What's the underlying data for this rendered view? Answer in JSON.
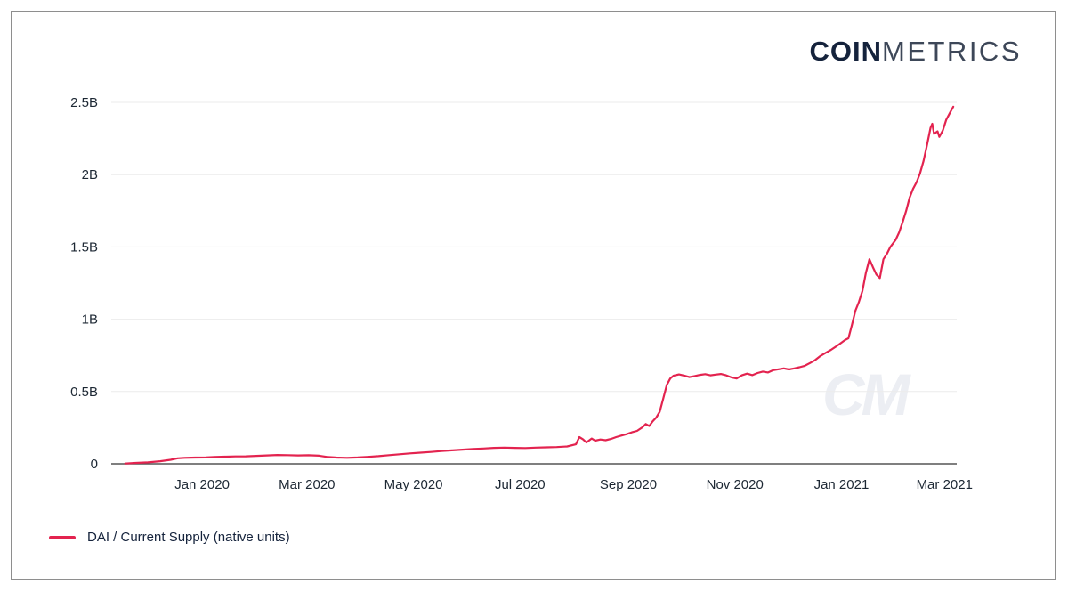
{
  "brand": {
    "logo_coin": "COIN",
    "logo_metrics": "METRICS",
    "watermark": "CM"
  },
  "legend": {
    "label": "DAI / Current Supply (native units)"
  },
  "colors": {
    "line": "#e3234f",
    "axis_text": "#1c2733",
    "gridline": "#ebebeb",
    "axis_line": "#555555",
    "watermark": "#eceef3",
    "frame_border": "#8e8e8e"
  },
  "chart_data": {
    "type": "line",
    "title": "",
    "xlabel": "",
    "ylabel": "",
    "grid": "horizontal",
    "legend_position": "bottom-left",
    "x_range": [
      "2019-11-10",
      "2021-03-08"
    ],
    "y_range": [
      0,
      2.5
    ],
    "y_ticks": [
      {
        "value": 0,
        "label": "0"
      },
      {
        "value": 0.5,
        "label": "0.5B"
      },
      {
        "value": 1,
        "label": "1B"
      },
      {
        "value": 1.5,
        "label": "1.5B"
      },
      {
        "value": 2,
        "label": "2B"
      },
      {
        "value": 2.5,
        "label": "2.5B"
      }
    ],
    "x_ticks": [
      {
        "date": "2020-01-01",
        "label": "Jan 2020"
      },
      {
        "date": "2020-03-01",
        "label": "Mar 2020"
      },
      {
        "date": "2020-05-01",
        "label": "May 2020"
      },
      {
        "date": "2020-07-01",
        "label": "Jul 2020"
      },
      {
        "date": "2020-09-01",
        "label": "Sep 2020"
      },
      {
        "date": "2020-11-01",
        "label": "Nov 2020"
      },
      {
        "date": "2021-01-01",
        "label": "Jan 2021"
      },
      {
        "date": "2021-03-01",
        "label": "Mar 2021"
      }
    ],
    "series": [
      {
        "name": "DAI / Current Supply (native units)",
        "color": "#e3234f",
        "units": "billions",
        "points": [
          [
            "2019-11-18",
            0.002
          ],
          [
            "2019-11-24",
            0.006
          ],
          [
            "2019-12-01",
            0.01
          ],
          [
            "2019-12-08",
            0.018
          ],
          [
            "2019-12-14",
            0.028
          ],
          [
            "2019-12-18",
            0.038
          ],
          [
            "2019-12-22",
            0.041
          ],
          [
            "2019-12-28",
            0.043
          ],
          [
            "2020-01-03",
            0.044
          ],
          [
            "2020-01-08",
            0.047
          ],
          [
            "2020-01-14",
            0.049
          ],
          [
            "2020-01-20",
            0.051
          ],
          [
            "2020-01-26",
            0.052
          ],
          [
            "2020-02-01",
            0.055
          ],
          [
            "2020-02-07",
            0.058
          ],
          [
            "2020-02-13",
            0.061
          ],
          [
            "2020-02-19",
            0.06
          ],
          [
            "2020-02-25",
            0.058
          ],
          [
            "2020-03-02",
            0.059
          ],
          [
            "2020-03-08",
            0.056
          ],
          [
            "2020-03-13",
            0.047
          ],
          [
            "2020-03-18",
            0.043
          ],
          [
            "2020-03-24",
            0.041
          ],
          [
            "2020-03-30",
            0.044
          ],
          [
            "2020-04-05",
            0.048
          ],
          [
            "2020-04-11",
            0.053
          ],
          [
            "2020-04-17",
            0.06
          ],
          [
            "2020-04-23",
            0.066
          ],
          [
            "2020-04-29",
            0.072
          ],
          [
            "2020-05-05",
            0.077
          ],
          [
            "2020-05-11",
            0.082
          ],
          [
            "2020-05-17",
            0.088
          ],
          [
            "2020-05-23",
            0.093
          ],
          [
            "2020-05-29",
            0.098
          ],
          [
            "2020-06-04",
            0.102
          ],
          [
            "2020-06-10",
            0.106
          ],
          [
            "2020-06-16",
            0.11
          ],
          [
            "2020-06-22",
            0.112
          ],
          [
            "2020-06-28",
            0.11
          ],
          [
            "2020-07-04",
            0.109
          ],
          [
            "2020-07-10",
            0.112
          ],
          [
            "2020-07-16",
            0.114
          ],
          [
            "2020-07-22",
            0.116
          ],
          [
            "2020-07-28",
            0.12
          ],
          [
            "2020-08-02",
            0.135
          ],
          [
            "2020-08-04",
            0.185
          ],
          [
            "2020-08-06",
            0.17
          ],
          [
            "2020-08-08",
            0.148
          ],
          [
            "2020-08-11",
            0.175
          ],
          [
            "2020-08-13",
            0.16
          ],
          [
            "2020-08-16",
            0.168
          ],
          [
            "2020-08-19",
            0.163
          ],
          [
            "2020-08-22",
            0.172
          ],
          [
            "2020-08-25",
            0.185
          ],
          [
            "2020-08-28",
            0.195
          ],
          [
            "2020-08-31",
            0.205
          ],
          [
            "2020-09-03",
            0.218
          ],
          [
            "2020-09-06",
            0.228
          ],
          [
            "2020-09-09",
            0.252
          ],
          [
            "2020-09-11",
            0.275
          ],
          [
            "2020-09-13",
            0.262
          ],
          [
            "2020-09-15",
            0.295
          ],
          [
            "2020-09-17",
            0.32
          ],
          [
            "2020-09-19",
            0.36
          ],
          [
            "2020-09-21",
            0.45
          ],
          [
            "2020-09-23",
            0.545
          ],
          [
            "2020-09-25",
            0.59
          ],
          [
            "2020-09-27",
            0.61
          ],
          [
            "2020-09-30",
            0.618
          ],
          [
            "2020-10-03",
            0.61
          ],
          [
            "2020-10-06",
            0.6
          ],
          [
            "2020-10-09",
            0.607
          ],
          [
            "2020-10-12",
            0.615
          ],
          [
            "2020-10-15",
            0.62
          ],
          [
            "2020-10-18",
            0.612
          ],
          [
            "2020-10-21",
            0.617
          ],
          [
            "2020-10-24",
            0.621
          ],
          [
            "2020-10-27",
            0.612
          ],
          [
            "2020-10-30",
            0.598
          ],
          [
            "2020-11-02",
            0.59
          ],
          [
            "2020-11-05",
            0.612
          ],
          [
            "2020-11-08",
            0.624
          ],
          [
            "2020-11-11",
            0.613
          ],
          [
            "2020-11-14",
            0.628
          ],
          [
            "2020-11-17",
            0.638
          ],
          [
            "2020-11-20",
            0.632
          ],
          [
            "2020-11-23",
            0.648
          ],
          [
            "2020-11-26",
            0.654
          ],
          [
            "2020-11-29",
            0.66
          ],
          [
            "2020-12-02",
            0.653
          ],
          [
            "2020-12-05",
            0.66
          ],
          [
            "2020-12-08",
            0.668
          ],
          [
            "2020-12-11",
            0.678
          ],
          [
            "2020-12-14",
            0.697
          ],
          [
            "2020-12-17",
            0.718
          ],
          [
            "2020-12-20",
            0.746
          ],
          [
            "2020-12-23",
            0.768
          ],
          [
            "2020-12-26",
            0.788
          ],
          [
            "2020-12-29",
            0.812
          ],
          [
            "2021-01-01",
            0.838
          ],
          [
            "2021-01-03",
            0.856
          ],
          [
            "2021-01-05",
            0.868
          ],
          [
            "2021-01-07",
            0.96
          ],
          [
            "2021-01-09",
            1.06
          ],
          [
            "2021-01-11",
            1.12
          ],
          [
            "2021-01-13",
            1.195
          ],
          [
            "2021-01-15",
            1.32
          ],
          [
            "2021-01-17",
            1.415
          ],
          [
            "2021-01-19",
            1.36
          ],
          [
            "2021-01-21",
            1.31
          ],
          [
            "2021-01-23",
            1.285
          ],
          [
            "2021-01-25",
            1.415
          ],
          [
            "2021-01-27",
            1.452
          ],
          [
            "2021-01-29",
            1.5
          ],
          [
            "2021-02-01",
            1.548
          ],
          [
            "2021-02-03",
            1.6
          ],
          [
            "2021-02-05",
            1.672
          ],
          [
            "2021-02-07",
            1.748
          ],
          [
            "2021-02-09",
            1.84
          ],
          [
            "2021-02-11",
            1.902
          ],
          [
            "2021-02-13",
            1.948
          ],
          [
            "2021-02-15",
            2.01
          ],
          [
            "2021-02-17",
            2.095
          ],
          [
            "2021-02-19",
            2.205
          ],
          [
            "2021-02-21",
            2.325
          ],
          [
            "2021-02-22",
            2.352
          ],
          [
            "2021-02-23",
            2.282
          ],
          [
            "2021-02-25",
            2.3
          ],
          [
            "2021-02-26",
            2.262
          ],
          [
            "2021-02-28",
            2.305
          ],
          [
            "2021-03-02",
            2.38
          ],
          [
            "2021-03-04",
            2.425
          ],
          [
            "2021-03-06",
            2.47
          ]
        ]
      }
    ]
  }
}
